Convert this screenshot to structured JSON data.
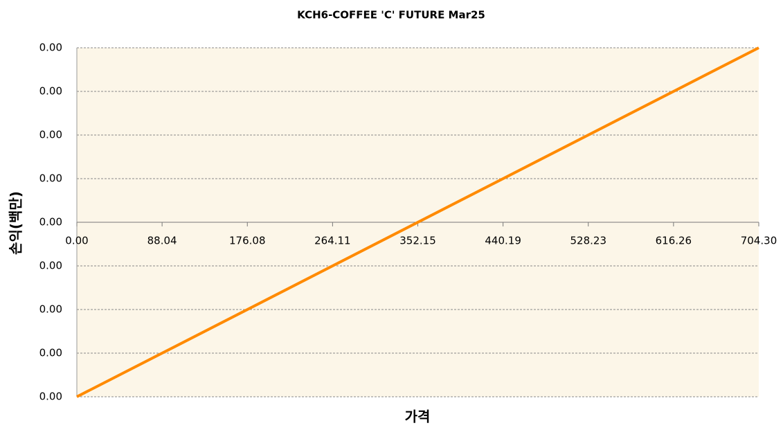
{
  "chart_data": {
    "type": "line",
    "title": "KCH6-COFFEE 'C' FUTURE Mar25",
    "x_label": "가격",
    "y_label": "손익(백만)",
    "x": [
      0,
      704.3
    ],
    "series": [
      {
        "name": "손익",
        "color": "#ff8a00",
        "values": [
          -0.004,
          0.004
        ]
      }
    ],
    "xlim": [
      0,
      704.3
    ],
    "xticks": [
      {
        "value": 0,
        "label": "0.00"
      },
      88.04,
      176.08,
      264.11,
      352.15,
      440.19,
      528.23,
      616.26,
      {
        "value": 704.3,
        "label": "704.30"
      }
    ],
    "ylim": [
      -0.004,
      0.004
    ],
    "yticks": [
      {
        "value": -0.004,
        "label": "0.00"
      },
      {
        "value": -0.003,
        "label": "0.00"
      },
      {
        "value": -0.002,
        "label": "0.00"
      },
      {
        "value": -0.001,
        "label": "0.00"
      },
      {
        "value": 0,
        "label": "0.00"
      },
      {
        "value": 0.001,
        "label": "0.00"
      },
      {
        "value": 0.002,
        "label": "0.00"
      },
      {
        "value": 0.003,
        "label": "0.00"
      },
      {
        "value": 0.004,
        "label": "0.00"
      }
    ],
    "grid": true,
    "background": "#fcf6e8"
  }
}
